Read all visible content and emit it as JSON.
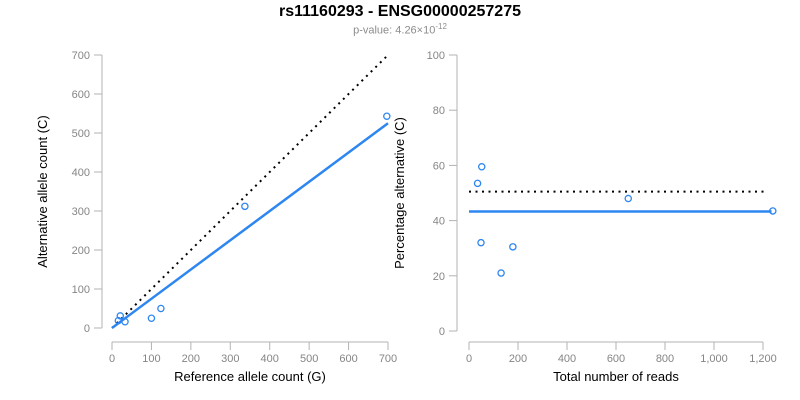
{
  "header": {
    "title": "rs11160293 - ENSG00000257275",
    "subtitle_base": "p-value: 4.26×10",
    "subtitle_exponent": "-12"
  },
  "colors": {
    "accent_blue": "#2E86F0",
    "dotted_black": "#000000",
    "axis_line_gray": "#B3B3B3",
    "tick_label_gray": "#858585",
    "subtitle_gray": "#8C8C8C",
    "axis_title_black": "#000000",
    "background": "#FFFFFF"
  },
  "chart_data": [
    {
      "type": "scatter",
      "panel": "allele-counts",
      "xlabel": "Reference allele count (G)",
      "ylabel": "Alternative allele count (C)",
      "xlim": [
        0,
        700
      ],
      "ylim": [
        0,
        700
      ],
      "xticks": [
        0,
        100,
        200,
        300,
        400,
        500,
        600,
        700
      ],
      "xtick_labels": [
        "0",
        "100",
        "200",
        "300",
        "400",
        "500",
        "600",
        "700"
      ],
      "yticks": [
        0,
        100,
        200,
        300,
        400,
        500,
        600,
        700
      ],
      "ytick_labels": [
        "0",
        "100",
        "200",
        "300",
        "400",
        "500",
        "600",
        "700"
      ],
      "grid": false,
      "points": [
        {
          "x": 21,
          "y": 31
        },
        {
          "x": 16,
          "y": 19
        },
        {
          "x": 33,
          "y": 16
        },
        {
          "x": 100,
          "y": 25
        },
        {
          "x": 124,
          "y": 50
        },
        {
          "x": 337,
          "y": 312
        },
        {
          "x": 697,
          "y": 543
        }
      ],
      "lines": [
        {
          "name": "identity-line",
          "style": "dotted",
          "color_key": "dotted_black",
          "x1": 0,
          "y1": 0,
          "x2": 700,
          "y2": 700
        },
        {
          "name": "fit-line",
          "style": "solid",
          "color_key": "accent_blue",
          "x1": 0,
          "y1": 0,
          "x2": 700,
          "y2": 525
        }
      ]
    },
    {
      "type": "scatter",
      "panel": "percentage-vs-reads",
      "xlabel": "Total number of reads",
      "ylabel": "Percentage alternative (C)",
      "xlim": [
        0,
        1200
      ],
      "ylim": [
        0,
        100
      ],
      "xticks": [
        0,
        200,
        400,
        600,
        800,
        1000,
        1200
      ],
      "xtick_labels": [
        "0",
        "200",
        "400",
        "600",
        "800",
        "1,000",
        "1,200"
      ],
      "yticks": [
        0,
        20,
        40,
        60,
        80,
        100
      ],
      "ytick_labels": [
        "0",
        "20",
        "40",
        "60",
        "80",
        "100"
      ],
      "grid": false,
      "points": [
        {
          "x": 52,
          "y": 59.5
        },
        {
          "x": 35,
          "y": 53.5
        },
        {
          "x": 49,
          "y": 32
        },
        {
          "x": 131,
          "y": 21
        },
        {
          "x": 179,
          "y": 30.5
        },
        {
          "x": 650,
          "y": 48
        },
        {
          "x": 1240,
          "y": 43.5
        }
      ],
      "lines": [
        {
          "name": "fifty-percent-line",
          "style": "dotted",
          "color_key": "dotted_black",
          "x1": 0,
          "y1": 50.5,
          "x2": 1215,
          "y2": 50.5
        },
        {
          "name": "mean-percentage-line",
          "style": "solid",
          "color_key": "accent_blue",
          "x1": 0,
          "y1": 43.3,
          "x2": 1235,
          "y2": 43.3
        }
      ]
    }
  ]
}
